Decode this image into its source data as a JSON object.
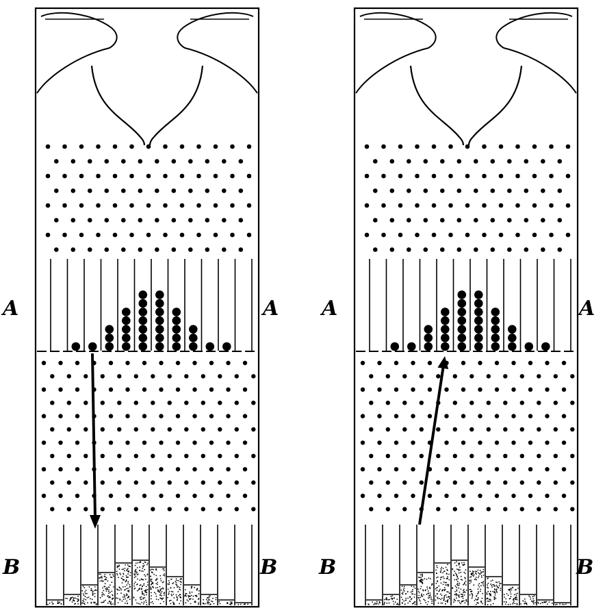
{
  "labels": {
    "upper_row": "A",
    "lower_row": "B"
  },
  "panels": [
    {
      "id": "left",
      "arrow_direction": "down"
    },
    {
      "id": "right",
      "arrow_direction": "up"
    }
  ],
  "colors": {
    "ink": "#000000",
    "paper": "#ffffff"
  }
}
